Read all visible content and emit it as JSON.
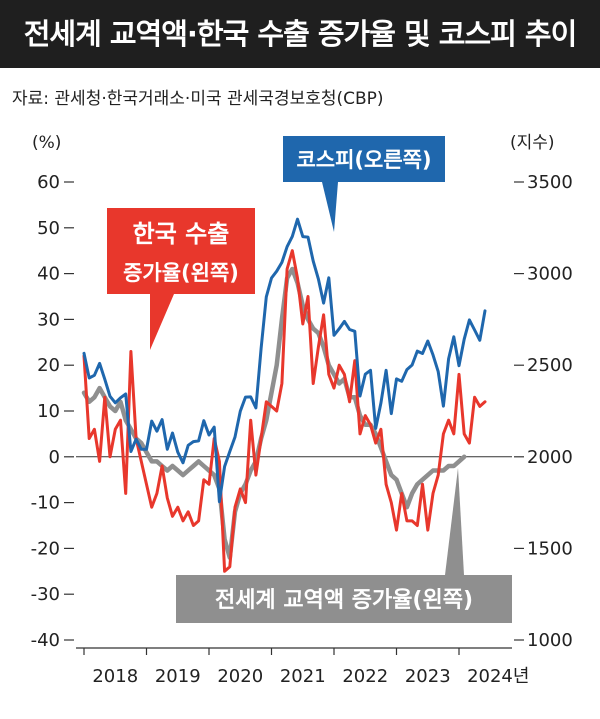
{
  "header": {
    "title": "전세계 교역액·한국 수출 증가율 및 코스피 추이",
    "source": "자료: 관세청·한국거래소·미국 관세국경보호청(CBP)"
  },
  "chart_data": {
    "type": "line",
    "y_left_unit": "(%)",
    "y_right_unit": "(지수)",
    "ylim_left": [
      -40,
      60
    ],
    "ylim_right": [
      1000,
      3500
    ],
    "y_left_ticks": [
      "60",
      "50",
      "40",
      "30",
      "20",
      "10",
      "0",
      "-10",
      "-20",
      "-30",
      "-40"
    ],
    "y_right_ticks": [
      "3500",
      "3000",
      "2500",
      "2000",
      "1500",
      "1000"
    ],
    "x_ticks": [
      "2018",
      "2019",
      "2020",
      "2021",
      "2022",
      "2023",
      "2024년"
    ],
    "x_start": "2018-01",
    "reference_line_y": 0,
    "series": [
      {
        "name": "코스피(오른쪽)",
        "axis": "right",
        "color": "#1f67ad",
        "label_bg": "#1f67ad",
        "values": [
          2565,
          2430,
          2445,
          2510,
          2423,
          2330,
          2295,
          2322,
          2343,
          2029,
          2096,
          2041,
          2041,
          2195,
          2140,
          2203,
          2041,
          2130,
          2025,
          1967,
          2063,
          2083,
          2087,
          2197,
          2119,
          2162,
          1755,
          1947,
          2029,
          2108,
          2249,
          2326,
          2327,
          2267,
          2591,
          2873,
          2976,
          3013,
          3061,
          3147,
          3203,
          3297,
          3202,
          3199,
          3068,
          2970,
          2839,
          2977,
          2663,
          2699,
          2739,
          2695,
          2685,
          2332,
          2451,
          2472,
          2155,
          2293,
          2472,
          2236,
          2425,
          2412,
          2476,
          2501,
          2577,
          2564,
          2632,
          2556,
          2465,
          2277,
          2535,
          2655,
          2497,
          2642,
          2747,
          2692,
          2636,
          2797
        ]
      },
      {
        "name": "한국 수출 증가율(왼쪽)",
        "axis": "left",
        "color": "#e8372c",
        "label_bg": "#e8372c",
        "values": [
          22,
          4,
          6,
          -1,
          13,
          0,
          6,
          8,
          -8,
          23,
          4,
          -1,
          -6,
          -11,
          -8,
          -2,
          -9,
          -13,
          -11,
          -14,
          -12,
          -15,
          -14,
          -5,
          -6,
          4,
          -1,
          -25,
          -24,
          -11,
          -7,
          -10,
          8,
          -4,
          4,
          12,
          11,
          10,
          16,
          41,
          45,
          39,
          29,
          35,
          16,
          24,
          31,
          18,
          15,
          20,
          18,
          12,
          21,
          5,
          9,
          7,
          3,
          6,
          -6,
          -10,
          -16,
          -8,
          -14,
          -14,
          -15,
          -6,
          -16,
          -8,
          -4,
          5,
          8,
          5,
          18,
          5,
          3,
          13,
          11,
          12
        ]
      },
      {
        "name": "전세계 교역액 증가율(왼쪽)",
        "axis": "left",
        "color": "#8f8f8f",
        "label_bg": "#8f8f8f",
        "values": [
          14,
          12,
          13,
          15,
          13,
          11,
          10,
          12,
          8,
          6,
          4,
          3,
          1,
          -1,
          -1,
          -2,
          -3,
          -2,
          -3,
          -4,
          -3,
          -2,
          -1,
          -2,
          -3,
          -4,
          -7,
          -18,
          -22,
          -12,
          -8,
          -6,
          -3,
          -1,
          4,
          8,
          14,
          20,
          30,
          39,
          41,
          38,
          33,
          30,
          28,
          27,
          24,
          20,
          18,
          16,
          17,
          13,
          13,
          9,
          7,
          7,
          5,
          2,
          -1,
          -4,
          -5,
          -8,
          -11,
          -8,
          -6,
          -5,
          -4,
          -3,
          -3,
          -3,
          -2,
          -2,
          -1,
          0
        ]
      }
    ]
  }
}
